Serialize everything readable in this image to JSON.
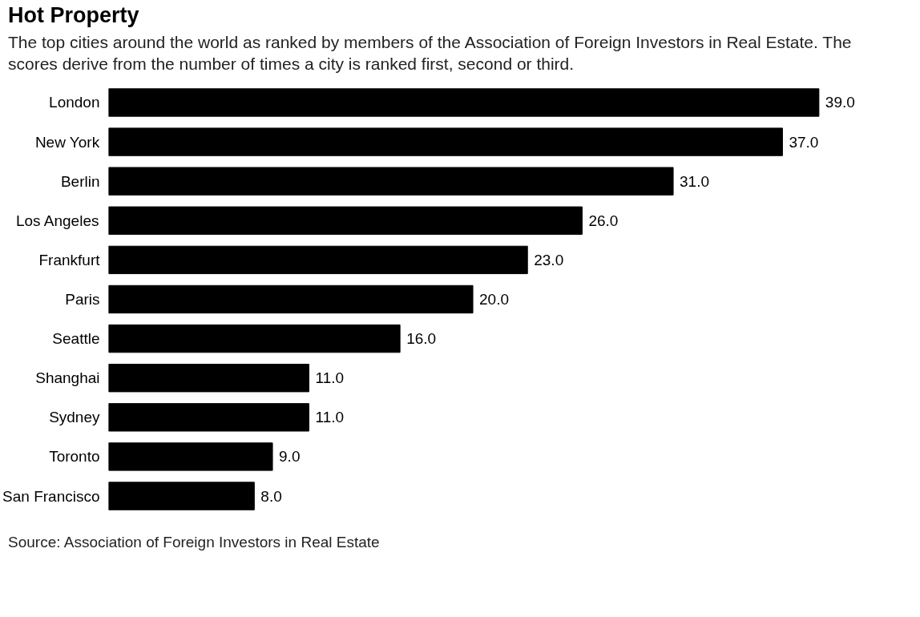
{
  "chart_data": {
    "type": "bar",
    "orientation": "horizontal",
    "title": "Hot Property",
    "subtitle": "The top cities around the world as ranked by members of the Association of Foreign Investors in Real Estate. The scores derive from the number of times a city is ranked first, second or third.",
    "categories": [
      "London",
      "New York",
      "Berlin",
      "Los Angeles",
      "Frankfurt",
      "Paris",
      "Seattle",
      "Shanghai",
      "Sydney",
      "Toronto",
      "San Francisco"
    ],
    "values": [
      39.0,
      37.0,
      31.0,
      26.0,
      23.0,
      20.0,
      16.0,
      11.0,
      11.0,
      9.0,
      8.0
    ],
    "color": "#000000",
    "value_labels": [
      "39.0",
      "37.0",
      "31.0",
      "26.0",
      "23.0",
      "20.0",
      "16.0",
      "11.0",
      "11.0",
      "9.0",
      "8.0"
    ],
    "grid": false,
    "annotations": [
      "Source: Association of Foreign Investors in Real Estate"
    ]
  }
}
